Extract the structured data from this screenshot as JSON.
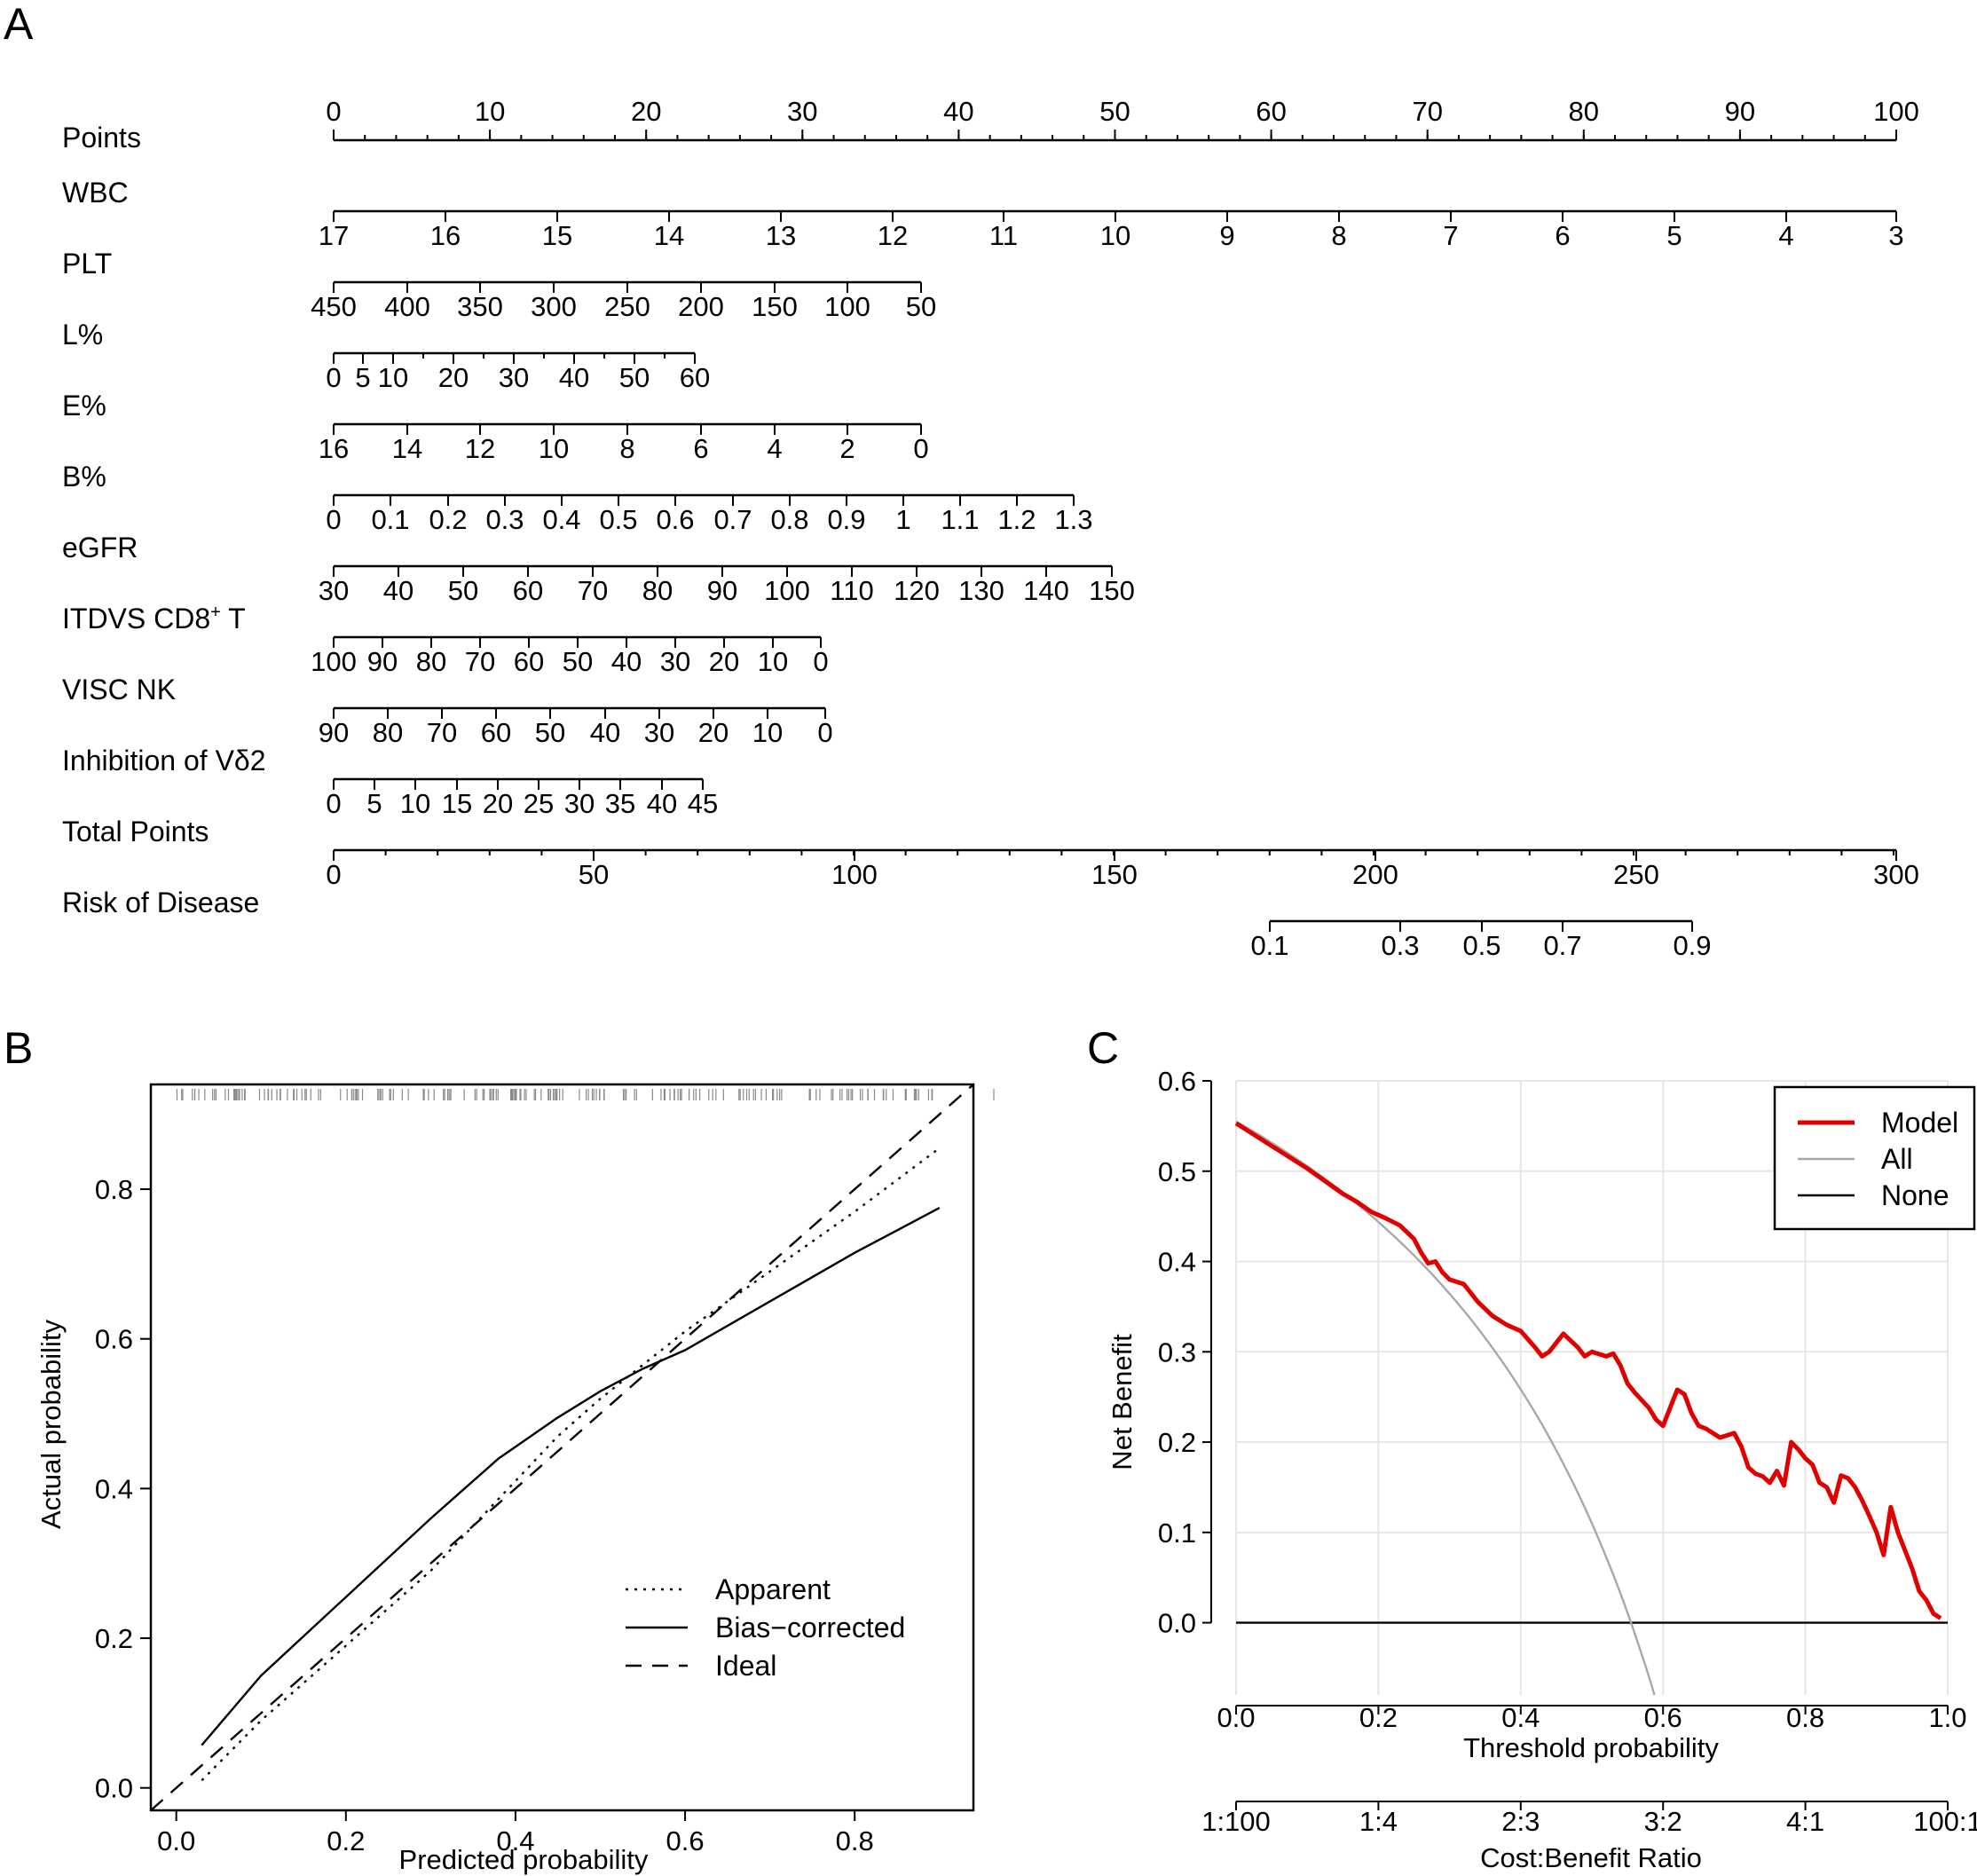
{
  "panels": {
    "a": "A",
    "b": "B",
    "c": "C"
  },
  "colors": {
    "model": "#e00000",
    "all": "#a8a8a8",
    "none": "#000000",
    "grid": "#e6e6e6"
  },
  "chart_data": [
    {
      "type": "nomogram",
      "title": "",
      "rows": [
        {
          "label": "Points",
          "ticks": [
            "0",
            "10",
            "20",
            "30",
            "40",
            "50",
            "60",
            "70",
            "80",
            "90",
            "100"
          ]
        },
        {
          "label": "WBC",
          "ticks": [
            "17",
            "16",
            "15",
            "14",
            "13",
            "12",
            "11",
            "10",
            "9",
            "8",
            "7",
            "6",
            "5",
            "4",
            "3"
          ]
        },
        {
          "label": "PLT",
          "ticks": [
            "450",
            "400",
            "350",
            "300",
            "250",
            "200",
            "150",
            "100",
            "50"
          ]
        },
        {
          "label": "L%",
          "ticks": [
            "0",
            "5",
            "10",
            "20",
            "30",
            "40",
            "50",
            "60"
          ]
        },
        {
          "label": "E%",
          "ticks": [
            "16",
            "14",
            "12",
            "10",
            "8",
            "6",
            "4",
            "2",
            "0"
          ]
        },
        {
          "label": "B%",
          "ticks": [
            "0",
            "0.1",
            "0.2",
            "0.3",
            "0.4",
            "0.5",
            "0.6",
            "0.7",
            "0.8",
            "0.9",
            "1",
            "1.1",
            "1.2",
            "1.3"
          ]
        },
        {
          "label": "eGFR",
          "ticks": [
            "30",
            "40",
            "50",
            "60",
            "70",
            "80",
            "90",
            "100",
            "110",
            "120",
            "130",
            "140",
            "150"
          ]
        },
        {
          "label": "ITDVS CD8",
          "label_sup": "+",
          "label_tail": " T",
          "ticks": [
            "100",
            "90",
            "80",
            "70",
            "60",
            "50",
            "40",
            "30",
            "20",
            "10",
            "0"
          ]
        },
        {
          "label": "VISC NK",
          "ticks": [
            "90",
            "80",
            "70",
            "60",
            "50",
            "40",
            "30",
            "20",
            "10",
            "0"
          ]
        },
        {
          "label": "Inhibition of Vδ2",
          "ticks": [
            "0",
            "5",
            "10",
            "15",
            "20",
            "25",
            "30",
            "35",
            "40",
            "45"
          ]
        },
        {
          "label": "Total Points",
          "ticks": [
            "0",
            "50",
            "100",
            "150",
            "200",
            "250",
            "300"
          ]
        },
        {
          "label": "Risk of Disease",
          "ticks": [
            "0.1",
            "0.3",
            "0.5",
            "0.7",
            "0.9"
          ]
        }
      ],
      "points_range": [
        0,
        100
      ],
      "total_points_range": [
        0,
        300
      ]
    },
    {
      "type": "line",
      "title": "",
      "xlabel": "Predicted probability",
      "ylabel": "Actual probability",
      "xlim": [
        -0.03,
        0.94
      ],
      "ylim": [
        -0.03,
        0.94
      ],
      "xticks": [
        "0.0",
        "0.2",
        "0.4",
        "0.6",
        "0.8"
      ],
      "yticks": [
        "0.0",
        "0.2",
        "0.4",
        "0.6",
        "0.8"
      ],
      "legend": {
        "position": "bottom-right",
        "entries": [
          "Apparent",
          "Bias−corrected",
          "Ideal"
        ]
      },
      "series": [
        {
          "name": "Apparent",
          "style": "dotted",
          "x": [
            0.03,
            0.1,
            0.2,
            0.3,
            0.4,
            0.45,
            0.5,
            0.55,
            0.6,
            0.7,
            0.8,
            0.9
          ],
          "y": [
            0.01,
            0.09,
            0.19,
            0.29,
            0.41,
            0.47,
            0.52,
            0.565,
            0.61,
            0.69,
            0.77,
            0.855
          ]
        },
        {
          "name": "Bias−corrected",
          "style": "solid",
          "x": [
            0.03,
            0.1,
            0.2,
            0.3,
            0.38,
            0.45,
            0.5,
            0.55,
            0.6,
            0.7,
            0.8,
            0.9
          ],
          "y": [
            0.057,
            0.15,
            0.255,
            0.36,
            0.44,
            0.495,
            0.53,
            0.56,
            0.585,
            0.65,
            0.715,
            0.775
          ]
        },
        {
          "name": "Ideal",
          "style": "dashed",
          "x": [
            -0.03,
            0.94
          ],
          "y": [
            -0.03,
            0.94
          ]
        }
      ]
    },
    {
      "type": "line",
      "title": "",
      "xlabel": "Threshold probability",
      "ylabel": "Net Benefit",
      "x2label": "Cost:Benefit Ratio",
      "xlim": [
        0,
        1
      ],
      "ylim": [
        -0.08,
        0.6
      ],
      "xticks": [
        "0.0",
        "0.2",
        "0.4",
        "0.6",
        "0.8",
        "1.0"
      ],
      "yticks": [
        "0.0",
        "0.1",
        "0.2",
        "0.3",
        "0.4",
        "0.5",
        "0.6"
      ],
      "x2ticks": [
        "1:100",
        "1:4",
        "2:3",
        "3:2",
        "4:1",
        "100:1"
      ],
      "legend": {
        "position": "top-right",
        "entries": [
          "Model",
          "All",
          "None"
        ]
      },
      "prevalence": 0.555,
      "series": [
        {
          "name": "Model",
          "color": "#e00000",
          "x": [
            0.0,
            0.05,
            0.1,
            0.15,
            0.17,
            0.19,
            0.21,
            0.23,
            0.25,
            0.26,
            0.27,
            0.28,
            0.29,
            0.3,
            0.32,
            0.34,
            0.36,
            0.38,
            0.4,
            0.42,
            0.43,
            0.44,
            0.46,
            0.48,
            0.49,
            0.5,
            0.52,
            0.53,
            0.54,
            0.55,
            0.56,
            0.58,
            0.59,
            0.6,
            0.62,
            0.63,
            0.64,
            0.65,
            0.66,
            0.68,
            0.7,
            0.71,
            0.72,
            0.73,
            0.74,
            0.75,
            0.76,
            0.77,
            0.78,
            0.79,
            0.8,
            0.81,
            0.82,
            0.83,
            0.84,
            0.85,
            0.86,
            0.87,
            0.88,
            0.89,
            0.9,
            0.91,
            0.92,
            0.93,
            0.94,
            0.95,
            0.96,
            0.97,
            0.98,
            0.99
          ],
          "y": [
            0.553,
            0.528,
            0.503,
            0.475,
            0.466,
            0.455,
            0.448,
            0.44,
            0.425,
            0.41,
            0.398,
            0.4,
            0.388,
            0.38,
            0.375,
            0.355,
            0.34,
            0.33,
            0.323,
            0.305,
            0.295,
            0.3,
            0.32,
            0.305,
            0.295,
            0.3,
            0.295,
            0.298,
            0.285,
            0.265,
            0.255,
            0.238,
            0.225,
            0.218,
            0.258,
            0.253,
            0.232,
            0.218,
            0.215,
            0.205,
            0.21,
            0.195,
            0.172,
            0.165,
            0.162,
            0.155,
            0.168,
            0.152,
            0.2,
            0.192,
            0.182,
            0.175,
            0.155,
            0.15,
            0.133,
            0.163,
            0.16,
            0.15,
            0.135,
            0.118,
            0.1,
            0.075,
            0.128,
            0.1,
            0.08,
            0.06,
            0.035,
            0.025,
            0.01,
            0.005
          ]
        },
        {
          "name": "All",
          "color": "#a8a8a8"
        },
        {
          "name": "None",
          "color": "#000000",
          "x": [
            0,
            1
          ],
          "y": [
            0,
            0
          ]
        }
      ]
    }
  ]
}
